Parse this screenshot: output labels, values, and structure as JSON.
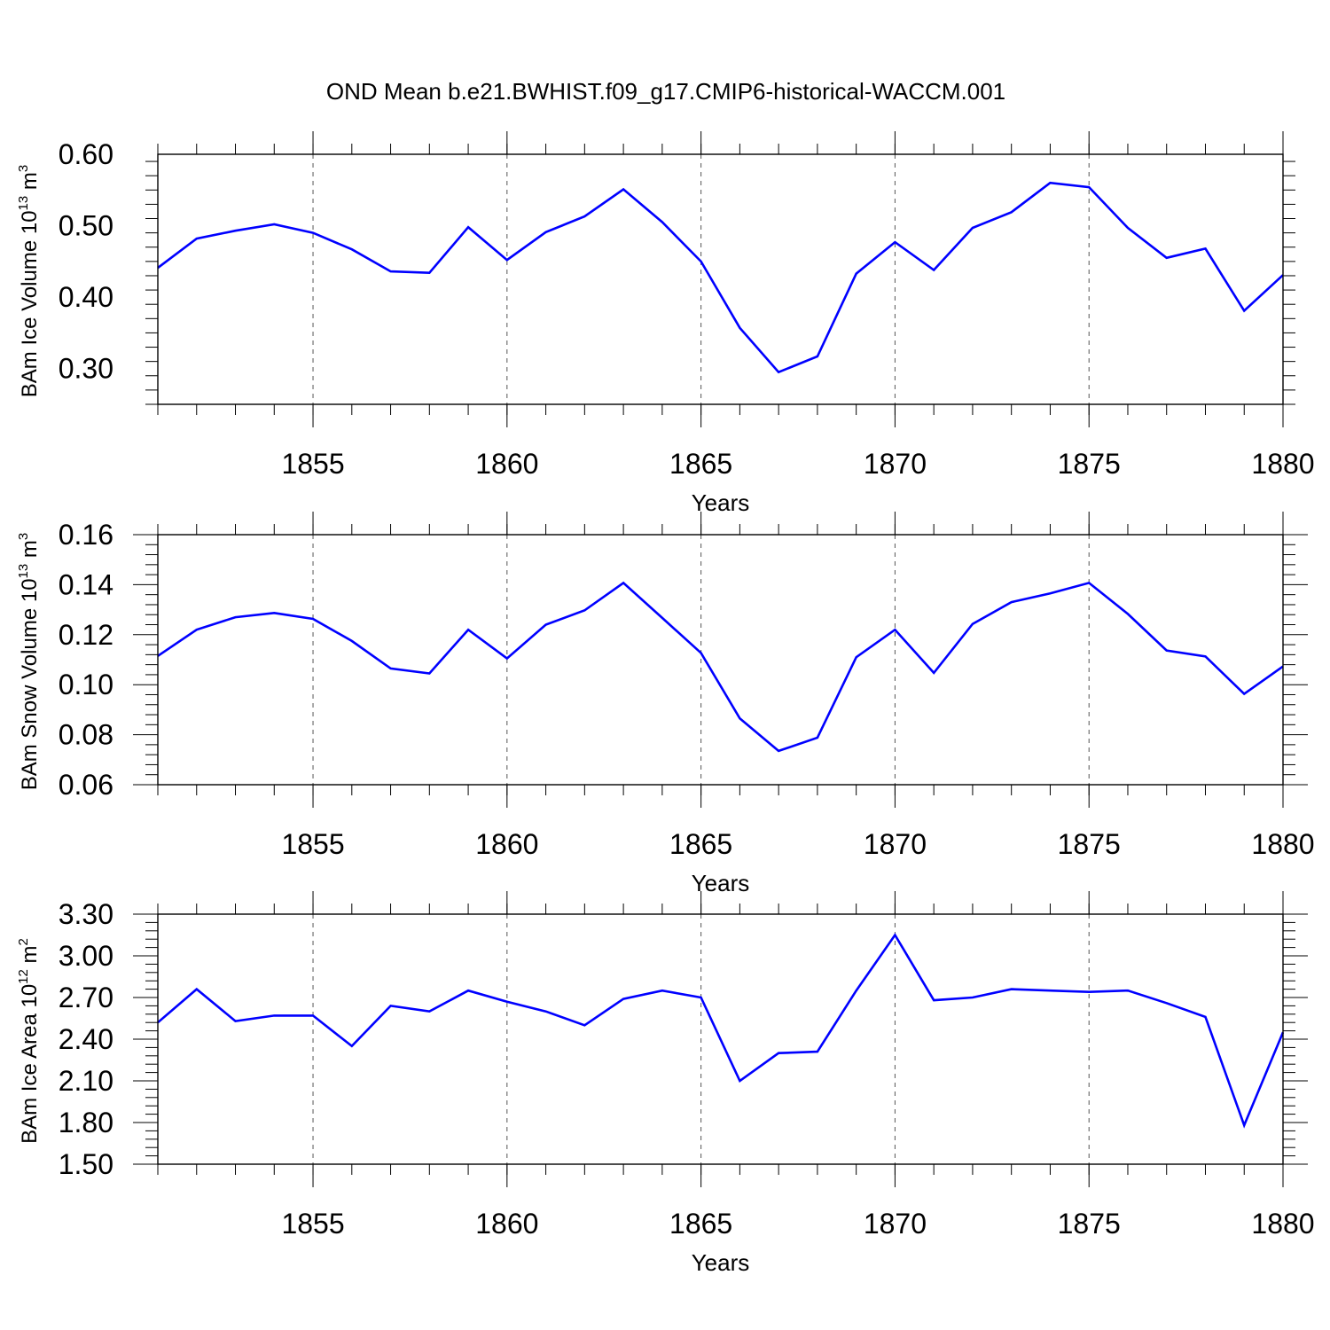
{
  "title": "OND Mean b.e21.BWHIST.f09_g17.CMIP6-historical-WACCM.001",
  "colors": {
    "line": "#0000ff",
    "axis": "#000000",
    "grid": "#555555"
  },
  "chart_data": [
    {
      "type": "line",
      "ylabel": {
        "main": "BAm Ice Volume 10",
        "exp": "13",
        "unit": " m",
        "unit_exp": "3"
      },
      "xlabel": "Years",
      "xlim": [
        1851,
        1880
      ],
      "ylim": [
        0.25,
        0.6
      ],
      "yticks": [
        0.3,
        0.4,
        0.5,
        0.6
      ],
      "ytick_labels": [
        "0.30",
        "0.40",
        "0.50",
        "0.60"
      ],
      "xticks": [
        1855,
        1860,
        1865,
        1870,
        1875,
        1880
      ],
      "xtick_labels": [
        "1855",
        "1860",
        "1865",
        "1870",
        "1875",
        "1880"
      ],
      "vertical_grid": "dashed at major x ticks",
      "series": [
        {
          "x": [
            1851,
            1852,
            1853,
            1854,
            1855,
            1856,
            1857,
            1858,
            1859,
            1860,
            1861,
            1862,
            1863,
            1864,
            1865,
            1866,
            1867,
            1868,
            1869,
            1870,
            1871,
            1872,
            1873,
            1874,
            1875,
            1876,
            1877,
            1878,
            1879,
            1880
          ],
          "values": [
            0.441,
            0.482,
            0.493,
            0.502,
            0.49,
            0.467,
            0.436,
            0.434,
            0.498,
            0.452,
            0.491,
            0.513,
            0.551,
            0.505,
            0.45,
            0.357,
            0.295,
            0.317,
            0.433,
            0.477,
            0.438,
            0.497,
            0.519,
            0.56,
            0.554,
            0.497,
            0.455,
            0.468,
            0.381,
            0.431
          ]
        }
      ]
    },
    {
      "type": "line",
      "ylabel": {
        "main": "BAm Snow Volume 10",
        "exp": "13",
        "unit": " m",
        "unit_exp": "3"
      },
      "xlabel": "Years",
      "xlim": [
        1851,
        1880
      ],
      "ylim": [
        0.06,
        0.16
      ],
      "yticks": [
        0.06,
        0.08,
        0.1,
        0.12,
        0.14,
        0.16
      ],
      "ytick_labels": [
        "0.06",
        "0.08",
        "0.10",
        "0.12",
        "0.14",
        "0.16"
      ],
      "xticks": [
        1855,
        1860,
        1865,
        1870,
        1875,
        1880
      ],
      "xtick_labels": [
        "1855",
        "1860",
        "1865",
        "1870",
        "1875",
        "1880"
      ],
      "vertical_grid": "dashed at major x ticks",
      "series": [
        {
          "x": [
            1851,
            1852,
            1853,
            1854,
            1855,
            1856,
            1857,
            1858,
            1859,
            1860,
            1861,
            1862,
            1863,
            1864,
            1865,
            1866,
            1867,
            1868,
            1869,
            1870,
            1871,
            1872,
            1873,
            1874,
            1875,
            1876,
            1877,
            1878,
            1879,
            1880
          ],
          "values": [
            0.1115,
            0.122,
            0.127,
            0.1287,
            0.1263,
            0.1175,
            0.1065,
            0.1045,
            0.122,
            0.1105,
            0.124,
            0.1297,
            0.1407,
            0.1267,
            0.1127,
            0.0865,
            0.0735,
            0.0788,
            0.111,
            0.122,
            0.1047,
            0.1243,
            0.133,
            0.1365,
            0.1407,
            0.1283,
            0.1137,
            0.1113,
            0.0963,
            0.1073
          ]
        }
      ]
    },
    {
      "type": "line",
      "ylabel": {
        "main": "BAm Ice Area 10",
        "exp": "12",
        "unit": " m",
        "unit_exp": "2"
      },
      "xlabel": "Years",
      "xlim": [
        1851,
        1880
      ],
      "ylim": [
        1.5,
        3.3
      ],
      "yticks": [
        1.5,
        1.8,
        2.1,
        2.4,
        2.7,
        3.0,
        3.3
      ],
      "ytick_labels": [
        "1.50",
        "1.80",
        "2.10",
        "2.40",
        "2.70",
        "3.00",
        "3.30"
      ],
      "xticks": [
        1855,
        1860,
        1865,
        1870,
        1875,
        1880
      ],
      "xtick_labels": [
        "1855",
        "1860",
        "1865",
        "1870",
        "1875",
        "1880"
      ],
      "vertical_grid": "dashed at major x ticks",
      "series": [
        {
          "x": [
            1851,
            1852,
            1853,
            1854,
            1855,
            1856,
            1857,
            1858,
            1859,
            1860,
            1861,
            1862,
            1863,
            1864,
            1865,
            1866,
            1867,
            1868,
            1869,
            1870,
            1871,
            1872,
            1873,
            1874,
            1875,
            1876,
            1877,
            1878,
            1879,
            1880
          ],
          "values": [
            2.52,
            2.76,
            2.53,
            2.57,
            2.57,
            2.35,
            2.64,
            2.6,
            2.75,
            2.67,
            2.6,
            2.5,
            2.69,
            2.75,
            2.7,
            2.1,
            2.3,
            2.31,
            2.75,
            3.15,
            2.68,
            2.7,
            2.76,
            2.75,
            2.74,
            2.75,
            2.66,
            2.56,
            1.78,
            2.45
          ]
        }
      ]
    }
  ]
}
